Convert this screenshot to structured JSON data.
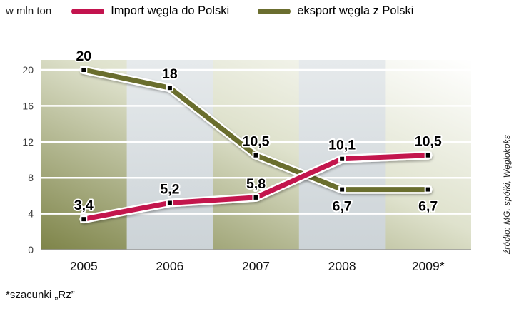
{
  "unit_label": "w mln ton",
  "legend": [
    {
      "label": "Import węgla do Polski",
      "color": "#c3134e"
    },
    {
      "label": "eksport węgla z Polski",
      "color": "#6b6e2f"
    }
  ],
  "footnote": "*szacunki „Rz”",
  "source": "źródło: MG, spółki, Węglokoks",
  "chart_data": {
    "type": "line",
    "title": "",
    "ylabel": "w mln ton",
    "categories": [
      "2005",
      "2006",
      "2007",
      "2008",
      "2009*"
    ],
    "series": [
      {
        "name": "Import węgla do Polski",
        "color": "#c3134e",
        "values": [
          3.4,
          5.2,
          5.8,
          10.1,
          10.5
        ],
        "labels": [
          "3,4",
          "5,2",
          "5,8",
          "10,1",
          "10,5"
        ],
        "label_pos": [
          "above",
          "above",
          "above",
          "above",
          "above"
        ]
      },
      {
        "name": "eksport węgla z Polski",
        "color": "#6b6e2f",
        "values": [
          20,
          18,
          10.5,
          6.7,
          6.7
        ],
        "labels": [
          "20",
          "18",
          "10,5",
          "6,7",
          "6,7"
        ],
        "label_pos": [
          "above",
          "above",
          "above",
          "below",
          "below"
        ]
      }
    ],
    "y_ticks": [
      0,
      4,
      8,
      12,
      16,
      20
    ],
    "ylim": [
      0,
      21
    ],
    "grid": true,
    "legend_position": "top",
    "background_colors": {
      "band_green_dark": "#7e8449",
      "band_gray": "#ccd3d7"
    }
  }
}
